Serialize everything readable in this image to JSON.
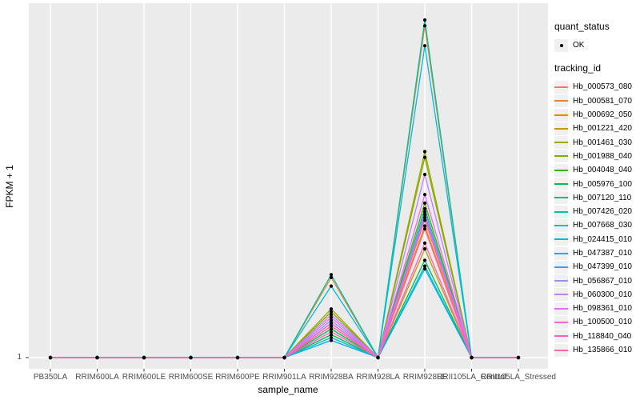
{
  "chart_data": {
    "type": "line",
    "title": "",
    "xlabel": "sample_name",
    "ylabel": "FPKM + 1",
    "y_ticks": [
      {
        "value": 1,
        "label": "1"
      }
    ],
    "ylim": [
      1,
      60
    ],
    "grid": "major-only",
    "panel_bg": "#EBEBEB",
    "grid_color": "#FFFFFF",
    "tick_color": "#333333",
    "tick_text_color": "#4D4D4D",
    "point_color": "#000000",
    "x_categories": [
      "PB350LA",
      "RRIM600LA",
      "RRIM600LE",
      "RRIM600SE",
      "RRIM600PE",
      "RRIM901LA",
      "RRIM928BA",
      "RRIM928LA",
      "RRIM928LE",
      "RRII105LA_Control",
      "RRII105LA_Stressed"
    ],
    "legend": {
      "quant_status": {
        "title": "quant_status",
        "items": [
          {
            "label": "OK",
            "symbol": "point",
            "color": "#000000"
          }
        ]
      },
      "tracking": {
        "title": "tracking_id"
      }
    },
    "series": [
      {
        "id": "Hb_000573_080",
        "color": "#F8766D",
        "values": [
          1,
          1,
          1,
          1,
          1,
          1,
          6.5,
          1,
          25,
          1,
          1
        ]
      },
      {
        "id": "Hb_000581_070",
        "color": "#EA8331",
        "values": [
          1,
          1,
          1,
          1,
          1,
          1,
          15,
          1,
          59,
          1,
          1
        ]
      },
      {
        "id": "Hb_000692_050",
        "color": "#D89000",
        "values": [
          1,
          1,
          1,
          1,
          1,
          1,
          6,
          1,
          24,
          1,
          1
        ]
      },
      {
        "id": "Hb_001221_420",
        "color": "#C09B00",
        "values": [
          1,
          1,
          1,
          1,
          1,
          1,
          7,
          1,
          20,
          1,
          1
        ]
      },
      {
        "id": "Hb_001461_030",
        "color": "#A3A500",
        "values": [
          1,
          1,
          1,
          1,
          1,
          1,
          9.5,
          1,
          37,
          1,
          1
        ]
      },
      {
        "id": "Hb_001988_040",
        "color": "#7CAE00",
        "values": [
          1,
          1,
          1,
          1,
          1,
          1,
          9,
          1,
          36,
          1,
          1
        ]
      },
      {
        "id": "Hb_004048_040",
        "color": "#39B600",
        "values": [
          1,
          1,
          1,
          1,
          1,
          1,
          6,
          1,
          28,
          1,
          1
        ]
      },
      {
        "id": "Hb_005976_100",
        "color": "#00BB4E",
        "values": [
          1,
          1,
          1,
          1,
          1,
          1,
          5,
          1,
          18,
          1,
          1
        ]
      },
      {
        "id": "Hb_007120_110",
        "color": "#00BF7D",
        "values": [
          1,
          1,
          1,
          1,
          1,
          1,
          6,
          1,
          27,
          1,
          1
        ]
      },
      {
        "id": "Hb_007426_020",
        "color": "#00C1A3",
        "values": [
          1,
          1,
          1,
          1,
          1,
          1,
          15.5,
          1,
          60,
          1,
          1
        ]
      },
      {
        "id": "Hb_007668_030",
        "color": "#00BFC4",
        "values": [
          1,
          1,
          1,
          1,
          1,
          1,
          4.5,
          1,
          17,
          1,
          1
        ]
      },
      {
        "id": "Hb_024415_010",
        "color": "#00BADE",
        "values": [
          1,
          1,
          1,
          1,
          1,
          1,
          13.5,
          1,
          55.5,
          1,
          1
        ]
      },
      {
        "id": "Hb_047387_010",
        "color": "#00B0F6",
        "values": [
          1,
          1,
          1,
          1,
          1,
          1,
          4,
          1,
          16.5,
          1,
          1
        ]
      },
      {
        "id": "Hb_047399_010",
        "color": "#35A2FF",
        "values": [
          1,
          1,
          1,
          1,
          1,
          1,
          7,
          1,
          26,
          1,
          1
        ]
      },
      {
        "id": "Hb_056867_010",
        "color": "#9590FF",
        "values": [
          1,
          1,
          1,
          1,
          1,
          1,
          7.5,
          1,
          26.5,
          1,
          1
        ]
      },
      {
        "id": "Hb_060300_010",
        "color": "#C77CFF",
        "values": [
          1,
          1,
          1,
          1,
          1,
          1,
          8.5,
          1,
          33,
          1,
          1
        ]
      },
      {
        "id": "Hb_098361_010",
        "color": "#E76BF3",
        "values": [
          1,
          1,
          1,
          1,
          1,
          1,
          8,
          1,
          29.5,
          1,
          1
        ]
      },
      {
        "id": "Hb_100500_010",
        "color": "#FA62DB",
        "values": [
          1,
          1,
          1,
          1,
          1,
          1,
          7,
          1,
          25.5,
          1,
          1
        ]
      },
      {
        "id": "Hb_118840_040",
        "color": "#FF62BC",
        "values": [
          1,
          1,
          1,
          1,
          1,
          1,
          5.5,
          1,
          21,
          1,
          1
        ]
      },
      {
        "id": "Hb_135866_010",
        "color": "#FF6A98",
        "values": [
          1,
          1,
          1,
          1,
          1,
          1,
          6.5,
          1,
          23.5,
          1,
          1
        ]
      }
    ]
  }
}
